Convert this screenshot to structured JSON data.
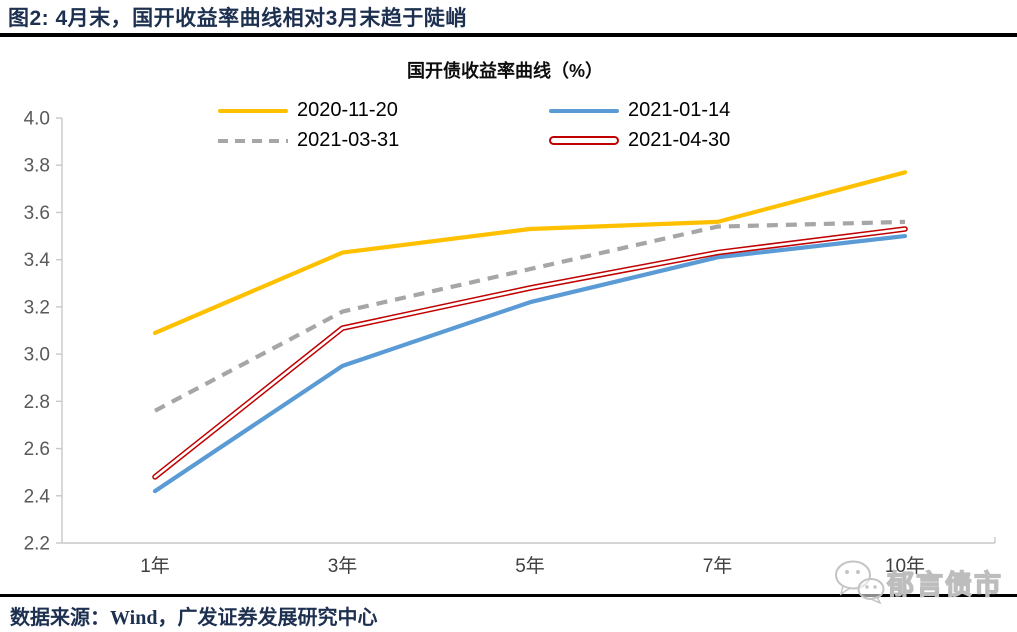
{
  "figure": {
    "title": "图2:  4月末，国开收益率曲线相对3月末趋于陡峭"
  },
  "chart_data": {
    "type": "line",
    "title": "国开债收益率曲线（%）",
    "categories": [
      "1年",
      "3年",
      "5年",
      "7年",
      "10年"
    ],
    "series": [
      {
        "name": "2020-11-20",
        "color": "#FFC000",
        "style": "solid",
        "values": [
          3.09,
          3.43,
          3.53,
          3.56,
          3.77
        ]
      },
      {
        "name": "2021-01-14",
        "color": "#5B9BD5",
        "style": "solid",
        "values": [
          2.42,
          2.95,
          3.22,
          3.41,
          3.5
        ]
      },
      {
        "name": "2021-03-31",
        "color": "#A6A6A6",
        "style": "dashed",
        "values": [
          2.76,
          3.18,
          3.36,
          3.54,
          3.56
        ]
      },
      {
        "name": "2021-04-30",
        "color": "#C00000",
        "style": "double",
        "values": [
          2.48,
          3.11,
          3.28,
          3.43,
          3.53
        ]
      }
    ],
    "ylim": [
      2.2,
      4.0
    ],
    "ytick_labels": [
      "4.0",
      "3.8",
      "3.6",
      "3.4",
      "3.2",
      "3.0",
      "2.8",
      "2.6",
      "2.4",
      "2.2"
    ],
    "legend_position": "top",
    "legend_rows": [
      [
        "2020-11-20",
        "2021-01-14"
      ],
      [
        "2021-03-31",
        "2021-04-30"
      ]
    ],
    "grid": false
  },
  "source": {
    "text": "数据来源：Wind，广发证券发展研究中心"
  },
  "watermark": {
    "icon": "wechat-bubbles-icon",
    "text": "郁言债市"
  },
  "colors": {
    "title_navy": "#1d3050",
    "rule_black": "#000000",
    "axis_gray": "#c8c8c8",
    "ylabel_gray": "#595959",
    "xlabel_gray": "#3f3f3f",
    "watermark_gray": "#bdbdbd"
  }
}
